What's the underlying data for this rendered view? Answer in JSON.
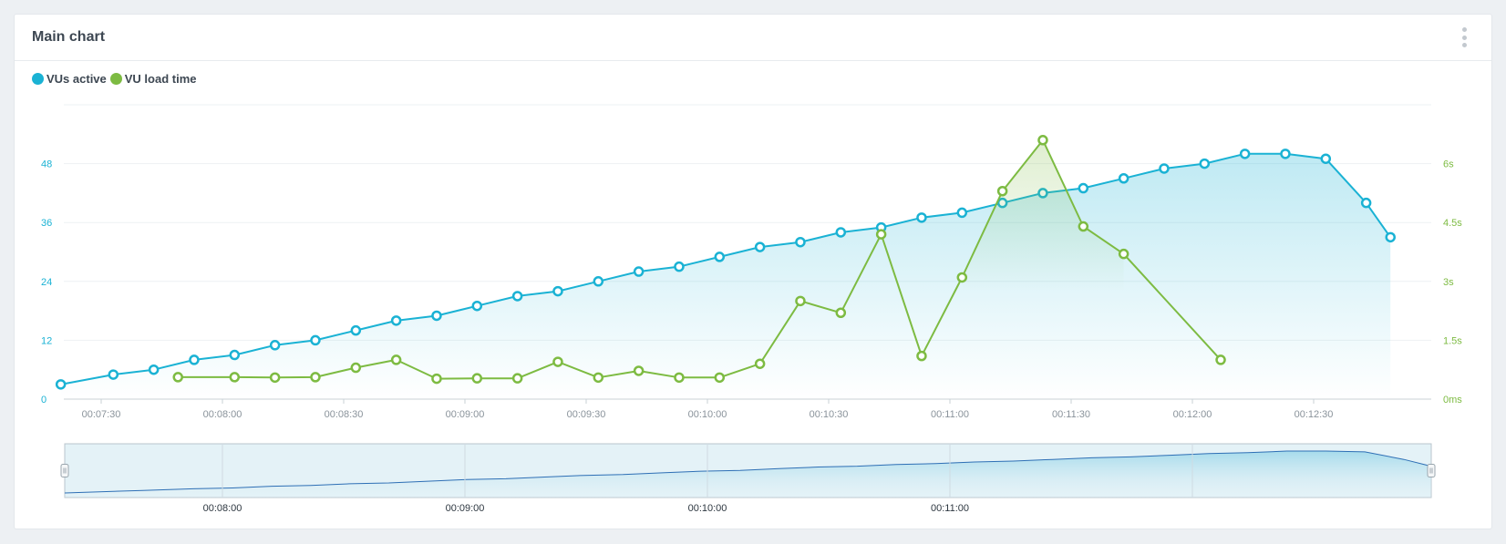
{
  "card": {
    "title": "Main chart",
    "menu_icon": "kebab-menu-icon"
  },
  "colors": {
    "vus": "#1ab2d4",
    "load": "#7dbb42",
    "x_tick": "#8a939b",
    "grid": "#eef1f3",
    "navigator_bg": "#e4f2f7",
    "navigator_line": "#2e6fb5"
  },
  "chart_data": {
    "type": "line",
    "x_format": "mm:ss time of day",
    "x_ticks": [
      "00:07:30",
      "00:08:00",
      "00:08:30",
      "00:09:00",
      "00:09:30",
      "00:10:00",
      "00:10:30",
      "00:11:00",
      "00:11:30",
      "00:12:00",
      "00:12:30"
    ],
    "y_left": {
      "ticks": [
        "0",
        "12",
        "24",
        "36",
        "48"
      ],
      "range": [
        0,
        60
      ]
    },
    "y_right": {
      "ticks": [
        "0ms",
        "1.5s",
        "3s",
        "4.5s",
        "6s"
      ],
      "range": [
        0,
        7.5
      ]
    },
    "legend_position": "top-left",
    "grid": true,
    "series": [
      {
        "name": "VUs active",
        "axis": "left",
        "area": true,
        "points": [
          [
            "00:07:20",
            3
          ],
          [
            "00:07:33",
            5
          ],
          [
            "00:07:43",
            6
          ],
          [
            "00:07:53",
            8
          ],
          [
            "00:08:03",
            9
          ],
          [
            "00:08:13",
            11
          ],
          [
            "00:08:23",
            12
          ],
          [
            "00:08:33",
            14
          ],
          [
            "00:08:43",
            16
          ],
          [
            "00:08:53",
            17
          ],
          [
            "00:09:03",
            19
          ],
          [
            "00:09:13",
            21
          ],
          [
            "00:09:23",
            22
          ],
          [
            "00:09:33",
            24
          ],
          [
            "00:09:43",
            26
          ],
          [
            "00:09:53",
            27
          ],
          [
            "00:10:03",
            29
          ],
          [
            "00:10:13",
            31
          ],
          [
            "00:10:23",
            32
          ],
          [
            "00:10:33",
            34
          ],
          [
            "00:10:43",
            35
          ],
          [
            "00:10:53",
            37
          ],
          [
            "00:11:03",
            38
          ],
          [
            "00:11:13",
            40
          ],
          [
            "00:11:23",
            42
          ],
          [
            "00:11:33",
            43
          ],
          [
            "00:11:43",
            45
          ],
          [
            "00:11:53",
            47
          ],
          [
            "00:12:03",
            48
          ],
          [
            "00:12:13",
            50
          ],
          [
            "00:12:23",
            50
          ],
          [
            "00:12:33",
            49
          ],
          [
            "00:12:43",
            40
          ],
          [
            "00:12:49",
            33
          ]
        ]
      },
      {
        "name": "VU load time",
        "axis": "right",
        "area": false,
        "points": [
          [
            "00:07:49",
            0.56
          ],
          [
            "00:08:03",
            0.56
          ],
          [
            "00:08:13",
            0.55
          ],
          [
            "00:08:23",
            0.56
          ],
          [
            "00:08:33",
            0.8
          ],
          [
            "00:08:43",
            1.0
          ],
          [
            "00:08:53",
            0.52
          ],
          [
            "00:09:03",
            0.53
          ],
          [
            "00:09:13",
            0.53
          ],
          [
            "00:09:23",
            0.95
          ],
          [
            "00:09:33",
            0.55
          ],
          [
            "00:09:43",
            0.72
          ],
          [
            "00:09:53",
            0.55
          ],
          [
            "00:10:03",
            0.55
          ],
          [
            "00:10:13",
            0.9
          ],
          [
            "00:10:23",
            2.5
          ],
          [
            "00:10:33",
            2.2
          ],
          [
            "00:10:43",
            4.2
          ],
          [
            "00:10:53",
            1.1
          ],
          [
            "00:11:03",
            3.1
          ],
          [
            "00:11:13",
            5.3
          ],
          [
            "00:11:23",
            6.6
          ],
          [
            "00:11:33",
            4.4
          ],
          [
            "00:11:43",
            3.7
          ],
          [
            "00:12:07",
            1.0
          ]
        ]
      }
    ],
    "navigator": {
      "x_ticks": [
        "00:08:00",
        "00:09:00",
        "00:10:00",
        "00:11:00"
      ]
    }
  }
}
